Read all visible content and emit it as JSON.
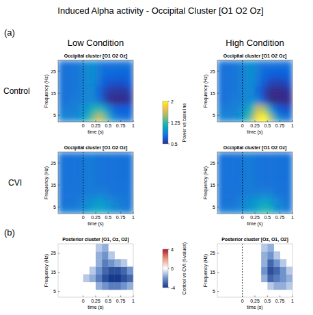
{
  "figure": {
    "title": "Induced Alpha activity - Occipital Cluster [O1 O2 Oz]",
    "panel_labels": [
      "(a)",
      "(b)"
    ],
    "column_labels": [
      "Low Condition",
      "High Condition"
    ],
    "row_labels": [
      "Control",
      "CVI"
    ]
  },
  "chart_data": [
    {
      "type": "heatmap",
      "title": "Occipital cluster [O1 O2 Oz]",
      "x_label": "time (s)",
      "y_label": "Frequency (Hz)",
      "x": [
        -0.4375,
        -0.3125,
        -0.1875,
        -0.0625,
        0.0625,
        0.1875,
        0.3125,
        0.4375,
        0.5625,
        0.6875,
        0.8125,
        0.9375
      ],
      "y": [
        4,
        8,
        12,
        16,
        20,
        24,
        28
      ],
      "values": [
        [
          0.9,
          0.9,
          0.9,
          0.95,
          1.1,
          1.35,
          1.6,
          1.4,
          1.0,
          0.85,
          0.8,
          0.8
        ],
        [
          0.85,
          0.85,
          0.85,
          0.9,
          1.0,
          1.15,
          1.25,
          1.05,
          0.8,
          0.7,
          0.7,
          0.7
        ],
        [
          0.8,
          0.8,
          0.85,
          0.85,
          0.9,
          0.9,
          0.8,
          0.6,
          0.5,
          0.5,
          0.5,
          0.55
        ],
        [
          0.8,
          0.8,
          0.8,
          0.85,
          0.9,
          0.9,
          0.75,
          0.6,
          0.55,
          0.55,
          0.55,
          0.6
        ],
        [
          0.8,
          0.8,
          0.8,
          0.85,
          0.9,
          0.95,
          0.8,
          0.7,
          0.65,
          0.65,
          0.65,
          0.7
        ],
        [
          0.8,
          0.8,
          0.8,
          0.85,
          0.9,
          0.95,
          0.85,
          0.75,
          0.75,
          0.75,
          0.75,
          0.75
        ],
        [
          0.8,
          0.8,
          0.8,
          0.85,
          0.9,
          0.95,
          0.85,
          0.8,
          0.8,
          0.8,
          0.8,
          0.8
        ]
      ],
      "xlim": [
        -0.5,
        1
      ],
      "ylim": [
        2,
        30
      ],
      "xticks": [
        0,
        0.25,
        0.5,
        0.75,
        1
      ],
      "yticks": [
        5,
        15,
        25
      ],
      "zlim": [
        0.5,
        2
      ],
      "zticks": [
        0.5,
        1.25,
        2
      ],
      "z_label": "Power vs baseline",
      "vline": 0
    },
    {
      "type": "heatmap",
      "title": "Occipital cluster [O1 O2 Oz]",
      "x_label": "time (s)",
      "y_label": "Frequency (Hz)",
      "x": [
        -0.4375,
        -0.3125,
        -0.1875,
        -0.0625,
        0.0625,
        0.1875,
        0.3125,
        0.4375,
        0.5625,
        0.6875,
        0.8125,
        0.9375
      ],
      "y": [
        4,
        8,
        12,
        16,
        20,
        24,
        28
      ],
      "values": [
        [
          0.9,
          0.9,
          0.9,
          0.95,
          1.1,
          1.4,
          1.9,
          2.0,
          1.5,
          1.0,
          0.85,
          0.8
        ],
        [
          0.85,
          0.85,
          0.85,
          0.9,
          1.0,
          1.2,
          1.6,
          1.5,
          1.0,
          0.7,
          0.65,
          0.65
        ],
        [
          0.8,
          0.8,
          0.85,
          0.85,
          0.9,
          0.95,
          0.85,
          0.65,
          0.5,
          0.45,
          0.45,
          0.5
        ],
        [
          0.8,
          0.8,
          0.8,
          0.85,
          0.9,
          0.9,
          0.75,
          0.6,
          0.5,
          0.5,
          0.5,
          0.55
        ],
        [
          0.8,
          0.8,
          0.8,
          0.85,
          0.9,
          0.95,
          0.8,
          0.7,
          0.6,
          0.6,
          0.6,
          0.65
        ],
        [
          0.8,
          0.8,
          0.8,
          0.85,
          0.9,
          0.95,
          0.85,
          0.75,
          0.7,
          0.7,
          0.7,
          0.75
        ],
        [
          0.8,
          0.8,
          0.8,
          0.85,
          0.9,
          0.95,
          0.85,
          0.8,
          0.8,
          0.8,
          0.8,
          0.8
        ]
      ],
      "xlim": [
        -0.5,
        1
      ],
      "ylim": [
        2,
        30
      ],
      "xticks": [
        0,
        0.25,
        0.5,
        0.75,
        1
      ],
      "yticks": [
        5,
        15,
        25
      ],
      "zlim": [
        0.5,
        2
      ],
      "vline": 0
    },
    {
      "type": "heatmap",
      "title": "Occipital cluster [O1 O2 Oz]",
      "x_label": "time (s)",
      "y_label": "Frequency (Hz)",
      "x": [
        -0.4375,
        -0.3125,
        -0.1875,
        -0.0625,
        0.0625,
        0.1875,
        0.3125,
        0.4375,
        0.5625,
        0.6875,
        0.8125,
        0.9375
      ],
      "y": [
        4,
        8,
        12,
        16,
        20,
        24,
        28
      ],
      "values": [
        [
          0.85,
          0.85,
          0.85,
          0.9,
          0.95,
          1.05,
          1.1,
          1.05,
          0.95,
          0.9,
          0.85,
          0.85
        ],
        [
          0.8,
          0.8,
          0.8,
          0.85,
          0.9,
          0.95,
          1.0,
          0.95,
          0.9,
          0.85,
          0.85,
          0.8
        ],
        [
          0.8,
          0.8,
          0.8,
          0.8,
          0.85,
          0.85,
          0.85,
          0.85,
          0.8,
          0.8,
          0.8,
          0.8
        ],
        [
          0.8,
          0.8,
          0.8,
          0.8,
          0.85,
          0.85,
          0.8,
          0.8,
          0.8,
          0.8,
          0.8,
          0.8
        ],
        [
          0.8,
          0.8,
          0.8,
          0.8,
          0.85,
          0.85,
          0.8,
          0.8,
          0.8,
          0.8,
          0.8,
          0.8
        ],
        [
          0.8,
          0.8,
          0.8,
          0.8,
          0.85,
          0.85,
          0.8,
          0.8,
          0.8,
          0.8,
          0.8,
          0.8
        ],
        [
          0.8,
          0.8,
          0.8,
          0.8,
          0.85,
          0.85,
          0.8,
          0.8,
          0.8,
          0.8,
          0.8,
          0.8
        ]
      ],
      "xlim": [
        -0.5,
        1
      ],
      "ylim": [
        2,
        30
      ],
      "xticks": [
        0,
        0.25,
        0.5,
        0.75,
        1
      ],
      "yticks": [
        5,
        15,
        25
      ],
      "zlim": [
        0.5,
        2
      ],
      "vline": 0
    },
    {
      "type": "heatmap",
      "title": "Occipital cluster [O1 O2 Oz]",
      "x_label": "time (s)",
      "y_label": "Frequency (Hz)",
      "x": [
        -0.4375,
        -0.3125,
        -0.1875,
        -0.0625,
        0.0625,
        0.1875,
        0.3125,
        0.4375,
        0.5625,
        0.6875,
        0.8125,
        0.9375
      ],
      "y": [
        4,
        8,
        12,
        16,
        20,
        24,
        28
      ],
      "values": [
        [
          0.85,
          0.85,
          0.85,
          0.9,
          0.95,
          1.0,
          1.1,
          1.2,
          1.15,
          0.95,
          0.9,
          0.85
        ],
        [
          0.8,
          0.8,
          0.8,
          0.85,
          0.9,
          0.95,
          1.0,
          1.05,
          1.0,
          0.9,
          0.85,
          0.8
        ],
        [
          0.8,
          0.8,
          0.8,
          0.8,
          0.85,
          0.85,
          0.85,
          0.85,
          0.85,
          0.8,
          0.8,
          0.8
        ],
        [
          0.8,
          0.8,
          0.8,
          0.8,
          0.85,
          0.85,
          0.8,
          0.8,
          0.8,
          0.8,
          0.8,
          0.8
        ],
        [
          0.8,
          0.8,
          0.8,
          0.8,
          0.85,
          0.85,
          0.8,
          0.8,
          0.8,
          0.8,
          0.8,
          0.8
        ],
        [
          0.8,
          0.8,
          0.8,
          0.8,
          0.85,
          0.85,
          0.8,
          0.8,
          0.8,
          0.8,
          0.8,
          0.8
        ],
        [
          0.8,
          0.8,
          0.8,
          0.8,
          0.85,
          0.85,
          0.8,
          0.8,
          0.8,
          0.8,
          0.8,
          0.8
        ]
      ],
      "xlim": [
        -0.5,
        1
      ],
      "ylim": [
        2,
        30
      ],
      "xticks": [
        0,
        0.25,
        0.5,
        0.75,
        1
      ],
      "yticks": [
        5,
        15,
        25
      ],
      "zlim": [
        0.5,
        2
      ],
      "vline": 0
    },
    {
      "type": "heatmap",
      "title": "Posterior cluster [O1, Oz, O2]",
      "x_label": "time (s)",
      "y_label": "Frequency (Hz)",
      "x": [
        -0.4375,
        -0.3125,
        -0.1875,
        -0.0625,
        0.0625,
        0.1875,
        0.3125,
        0.4375,
        0.5625,
        0.6875,
        0.8125,
        0.9375
      ],
      "y": [
        4,
        8,
        12,
        16,
        20,
        24,
        28
      ],
      "values": [
        [
          null,
          null,
          null,
          null,
          null,
          null,
          null,
          null,
          null,
          null,
          null,
          null
        ],
        [
          null,
          null,
          null,
          null,
          null,
          null,
          -1.5,
          -2,
          -2.5,
          -2.5,
          -2,
          -1.5
        ],
        [
          null,
          null,
          null,
          null,
          -1,
          -1.5,
          -2.5,
          -3.5,
          -4,
          -4,
          -3.5,
          -3
        ],
        [
          null,
          null,
          null,
          null,
          null,
          -1,
          -2,
          -3,
          -3.5,
          -3.5,
          -3,
          -2
        ],
        [
          null,
          null,
          null,
          null,
          null,
          null,
          -1.5,
          -2.5,
          -2,
          -1.5,
          -1,
          null
        ],
        [
          null,
          null,
          null,
          null,
          null,
          null,
          -1.5,
          -2,
          -1,
          null,
          null,
          null
        ],
        [
          null,
          null,
          null,
          null,
          null,
          null,
          -1,
          -1.5,
          null,
          null,
          null,
          null
        ]
      ],
      "xlim": [
        -0.5,
        1
      ],
      "ylim": [
        2,
        30
      ],
      "xticks": [
        0,
        0.25,
        0.5,
        0.75,
        1
      ],
      "yticks": [
        5,
        15,
        25
      ],
      "zlim": [
        -4,
        4
      ],
      "zticks": [
        -4,
        0,
        4
      ],
      "z_label": "Control vs CVI (t-values)"
    },
    {
      "type": "heatmap",
      "title": "Posterior cluster [Oz, O1, O2]",
      "x_label": "time (s)",
      "y_label": "Frequency (Hz)",
      "x": [
        -0.4375,
        -0.3125,
        -0.1875,
        -0.0625,
        0.0625,
        0.1875,
        0.3125,
        0.4375,
        0.5625,
        0.6875,
        0.8125,
        0.9375
      ],
      "y": [
        4,
        8,
        12,
        16,
        20,
        24,
        28
      ],
      "values": [
        [
          null,
          null,
          null,
          null,
          null,
          null,
          null,
          null,
          null,
          null,
          null,
          null
        ],
        [
          null,
          null,
          null,
          null,
          null,
          null,
          null,
          null,
          -1,
          -1.5,
          -1.5,
          -1
        ],
        [
          null,
          null,
          null,
          null,
          null,
          null,
          null,
          -1.5,
          -3,
          -2.5,
          -2,
          -1.5
        ],
        [
          null,
          null,
          null,
          null,
          null,
          null,
          null,
          -2,
          -3.5,
          -3,
          -2,
          -1
        ],
        [
          null,
          null,
          null,
          null,
          null,
          null,
          null,
          -1.5,
          -3,
          -2,
          -1,
          null
        ],
        [
          null,
          null,
          null,
          null,
          null,
          null,
          null,
          -1.5,
          -2,
          -1,
          null,
          null
        ],
        [
          null,
          null,
          null,
          null,
          null,
          null,
          null,
          -1,
          -1.5,
          null,
          null,
          null
        ]
      ],
      "xlim": [
        -0.5,
        1
      ],
      "ylim": [
        2,
        30
      ],
      "xticks": [
        0,
        0.25,
        0.5,
        0.75,
        1
      ],
      "yticks": [
        5,
        15,
        25
      ],
      "zlim": [
        -4,
        4
      ],
      "vline": 0
    }
  ]
}
